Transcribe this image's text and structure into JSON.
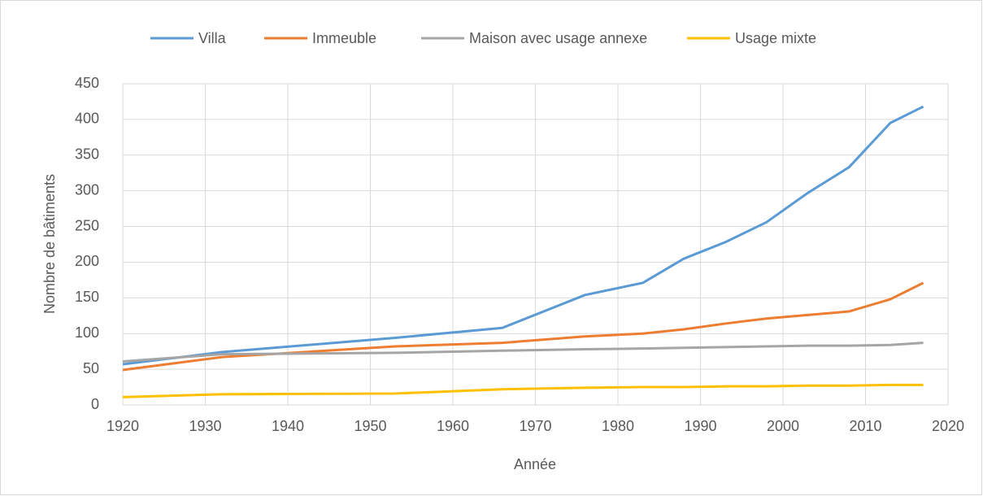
{
  "chart_data": {
    "type": "line",
    "x_label": "Année",
    "y_label": "Nombre de bâtiments",
    "x": [
      1920,
      1932,
      1953,
      1966,
      1976,
      1983,
      1988,
      1993,
      1998,
      2003,
      2008,
      2013,
      2017
    ],
    "series": [
      {
        "name": "Villa",
        "color": "#5b9bd5",
        "values": [
          57,
          74,
          94,
          108,
          154,
          171,
          205,
          228,
          256,
          297,
          333,
          395,
          418
        ]
      },
      {
        "name": "Immeuble",
        "color": "#ed7d31",
        "values": [
          49,
          67,
          82,
          87,
          96,
          100,
          106,
          114,
          121,
          126,
          131,
          148,
          171
        ]
      },
      {
        "name": "Maison avec usage annexe",
        "color": "#a5a5a5",
        "values": [
          61,
          71,
          73,
          76,
          78,
          79,
          80,
          81,
          82,
          83,
          83,
          84,
          87
        ]
      },
      {
        "name": "Usage mixte",
        "color": "#ffc000",
        "values": [
          11,
          15,
          16,
          22,
          24,
          25,
          25,
          26,
          26,
          27,
          27,
          28,
          28
        ]
      }
    ],
    "xlim": [
      1920,
      2020
    ],
    "xticks": [
      1920,
      1930,
      1940,
      1950,
      1960,
      1970,
      1980,
      1990,
      2000,
      2010,
      2020
    ],
    "ylim": [
      0,
      450
    ],
    "yticks": [
      0,
      50,
      100,
      150,
      200,
      250,
      300,
      350,
      400,
      450
    ],
    "grid": true,
    "legend": "top"
  }
}
